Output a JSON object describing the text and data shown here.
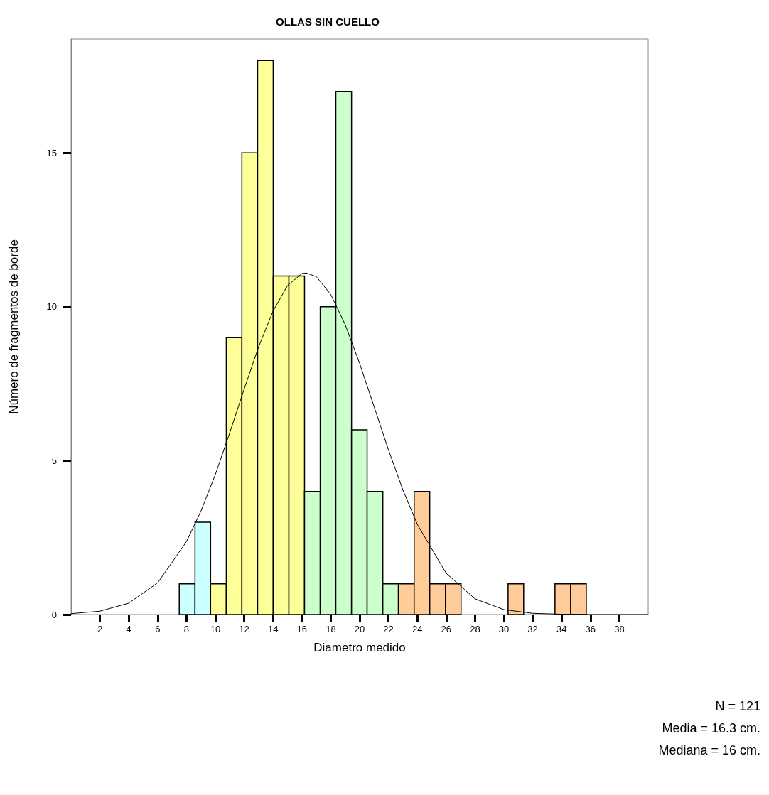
{
  "chart_data": {
    "type": "histogram",
    "title": "OLLAS SIN CUELLO",
    "xlabel": "Diametro medido",
    "ylabel": "Número de fragmentos de borde",
    "bins": [
      7.5,
      8.59,
      9.67,
      10.76,
      11.84,
      12.93,
      14.01,
      15.1,
      16.18,
      17.27,
      18.35,
      19.44,
      20.52,
      21.61,
      22.69,
      23.78,
      24.86,
      25.95,
      27.03,
      28.12,
      29.2,
      30.29,
      31.37,
      32.46,
      33.54,
      34.63,
      35.71
    ],
    "values": [
      1,
      3,
      1,
      9,
      15,
      18,
      11,
      11,
      4,
      10,
      17,
      6,
      4,
      1,
      1,
      4,
      1,
      1,
      0,
      0,
      0,
      1,
      0,
      0,
      1,
      1
    ],
    "colors": [
      "#ccffff",
      "#ccffff",
      "#ffff99",
      "#ffff99",
      "#ffff99",
      "#ffff99",
      "#ffff99",
      "#ffff99",
      "#ccffcc",
      "#ccffcc",
      "#ccffcc",
      "#ccffcc",
      "#ccffcc",
      "#ccffcc",
      "#ffcc99",
      "#ffcc99",
      "#ffcc99",
      "#ffcc99",
      null,
      null,
      null,
      "#ffcc99",
      null,
      null,
      "#ffcc99",
      "#ffcc99"
    ],
    "series": [
      {
        "type": "line",
        "color": "#000000",
        "x": [
          0,
          2,
          4,
          6,
          8,
          9,
          10,
          11,
          12,
          13,
          14,
          15,
          16,
          16.3,
          17,
          18,
          19,
          20,
          21,
          22,
          23,
          24,
          26,
          28,
          30,
          32,
          34,
          36,
          38,
          40
        ],
        "values": [
          0.03,
          0.11,
          0.37,
          1.03,
          2.37,
          3.36,
          4.55,
          5.91,
          7.33,
          8.7,
          9.86,
          10.69,
          11.08,
          11.1,
          10.98,
          10.4,
          9.42,
          8.16,
          6.76,
          5.35,
          4.05,
          2.93,
          1.34,
          0.51,
          0.16,
          0.04,
          0.01,
          0,
          0,
          0
        ]
      }
    ],
    "xlim": [
      0,
      40
    ],
    "xticks": [
      2,
      4,
      6,
      8,
      10,
      12,
      14,
      16,
      18,
      20,
      22,
      24,
      26,
      28,
      30,
      32,
      34,
      36,
      38
    ],
    "ylim": [
      0,
      18.7
    ],
    "yticks": [
      0,
      5,
      10,
      15
    ],
    "grid": false,
    "legend": false,
    "marker": "none",
    "line_style": "solid",
    "annotations": [
      "N = 121",
      "Media = 16.3 cm.",
      "Mediana = 16 cm."
    ]
  }
}
